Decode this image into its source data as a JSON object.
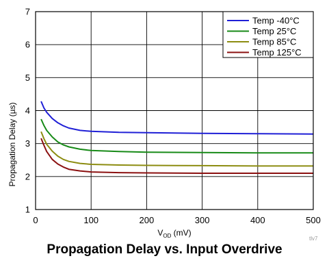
{
  "chart_data": {
    "type": "line",
    "title": "Propagation Delay vs. Input Overdrive",
    "xlabel_main": "V",
    "xlabel_sub": "OD",
    "xlabel_unit": " (mV)",
    "ylabel": "Propagation Delay (µs)",
    "xlim": [
      0,
      500
    ],
    "ylim": [
      1,
      7
    ],
    "xticks": [
      0,
      100,
      200,
      300,
      400,
      500
    ],
    "yticks": [
      1,
      2,
      3,
      4,
      5,
      6,
      7
    ],
    "grid": true,
    "legend_position": "top-right",
    "series": [
      {
        "name": "Temp -40°C",
        "color": "#1f1fd6",
        "x": [
          10,
          15,
          20,
          30,
          40,
          50,
          60,
          80,
          100,
          150,
          200,
          300,
          400,
          500
        ],
        "y": [
          4.28,
          4.08,
          3.95,
          3.76,
          3.63,
          3.54,
          3.47,
          3.4,
          3.37,
          3.34,
          3.33,
          3.31,
          3.3,
          3.29
        ]
      },
      {
        "name": "Temp 25°C",
        "color": "#178a17",
        "x": [
          10,
          15,
          20,
          30,
          40,
          50,
          60,
          80,
          100,
          150,
          200,
          300,
          400,
          500
        ],
        "y": [
          3.74,
          3.55,
          3.4,
          3.2,
          3.05,
          2.96,
          2.9,
          2.83,
          2.79,
          2.76,
          2.74,
          2.73,
          2.72,
          2.72
        ]
      },
      {
        "name": "Temp 85°C",
        "color": "#8c8c10",
        "x": [
          10,
          15,
          20,
          30,
          40,
          50,
          60,
          80,
          100,
          150,
          200,
          300,
          400,
          500
        ],
        "y": [
          3.36,
          3.15,
          2.98,
          2.77,
          2.62,
          2.52,
          2.46,
          2.4,
          2.37,
          2.35,
          2.34,
          2.33,
          2.32,
          2.32
        ]
      },
      {
        "name": "Temp 125°C",
        "color": "#8b1010",
        "x": [
          10,
          15,
          20,
          30,
          40,
          50,
          60,
          80,
          100,
          150,
          200,
          300,
          400,
          500
        ],
        "y": [
          3.16,
          2.95,
          2.76,
          2.52,
          2.38,
          2.29,
          2.22,
          2.17,
          2.14,
          2.12,
          2.11,
          2.1,
          2.1,
          2.1
        ]
      }
    ]
  },
  "figure_id": "tlv7"
}
